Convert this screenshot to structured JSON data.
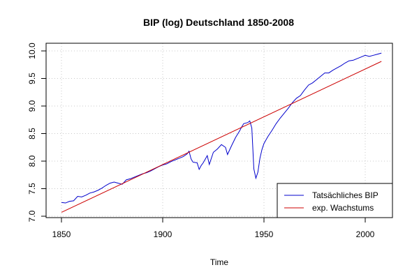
{
  "chart_data": {
    "type": "line",
    "title": "BIP (log) Deutschland 1850-2008",
    "xlabel": "Time",
    "ylabel": "",
    "xlim": [
      1850,
      2008
    ],
    "ylim": [
      7.0,
      10.0
    ],
    "x_ticks": [
      1850,
      1900,
      1950,
      2000
    ],
    "y_ticks": [
      7.0,
      7.5,
      8.0,
      8.5,
      9.0,
      9.5,
      10.0
    ],
    "x_tick_labels": [
      "1850",
      "1900",
      "1950",
      "2000"
    ],
    "y_tick_labels": [
      "7.0",
      "7.5",
      "8.0",
      "8.5",
      "9.0",
      "9.5",
      "10.0"
    ],
    "grid": true,
    "legend_position": "bottom-right",
    "series": [
      {
        "name": "Tatsächliches BIP",
        "color": "#0000cc",
        "x": [
          1850,
          1852,
          1854,
          1856,
          1858,
          1860,
          1862,
          1864,
          1866,
          1868,
          1870,
          1872,
          1874,
          1876,
          1878,
          1880,
          1882,
          1884,
          1886,
          1888,
          1890,
          1892,
          1894,
          1896,
          1898,
          1900,
          1902,
          1904,
          1906,
          1908,
          1910,
          1912,
          1913,
          1914,
          1915,
          1917,
          1918,
          1919,
          1920,
          1922,
          1923,
          1925,
          1927,
          1929,
          1931,
          1932,
          1934,
          1936,
          1938,
          1939,
          1940,
          1942,
          1943,
          1944,
          1945,
          1946,
          1947,
          1948,
          1949,
          1950,
          1952,
          1954,
          1956,
          1958,
          1960,
          1962,
          1964,
          1966,
          1968,
          1970,
          1972,
          1974,
          1976,
          1978,
          1980,
          1982,
          1984,
          1986,
          1988,
          1990,
          1992,
          1994,
          1996,
          1998,
          2000,
          2002,
          2004,
          2006,
          2008
        ],
        "values": [
          7.25,
          7.24,
          7.27,
          7.28,
          7.36,
          7.35,
          7.38,
          7.42,
          7.44,
          7.47,
          7.51,
          7.56,
          7.6,
          7.62,
          7.6,
          7.58,
          7.66,
          7.68,
          7.71,
          7.74,
          7.77,
          7.79,
          7.82,
          7.86,
          7.9,
          7.93,
          7.95,
          7.99,
          8.02,
          8.05,
          8.08,
          8.13,
          8.18,
          8.04,
          7.98,
          7.97,
          7.85,
          7.92,
          7.97,
          8.1,
          7.94,
          8.16,
          8.22,
          8.3,
          8.25,
          8.12,
          8.28,
          8.43,
          8.55,
          8.62,
          8.68,
          8.7,
          8.73,
          8.6,
          7.86,
          7.69,
          7.8,
          8.05,
          8.21,
          8.32,
          8.45,
          8.56,
          8.68,
          8.78,
          8.87,
          8.96,
          9.06,
          9.14,
          9.19,
          9.29,
          9.38,
          9.42,
          9.48,
          9.54,
          9.6,
          9.6,
          9.65,
          9.69,
          9.73,
          9.78,
          9.82,
          9.83,
          9.86,
          9.89,
          9.92,
          9.9,
          9.92,
          9.94,
          9.96
        ]
      },
      {
        "name": "exp. Wachstums",
        "color": "#cc0000",
        "x": [
          1850,
          2008
        ],
        "values": [
          7.07,
          9.81
        ]
      }
    ]
  }
}
